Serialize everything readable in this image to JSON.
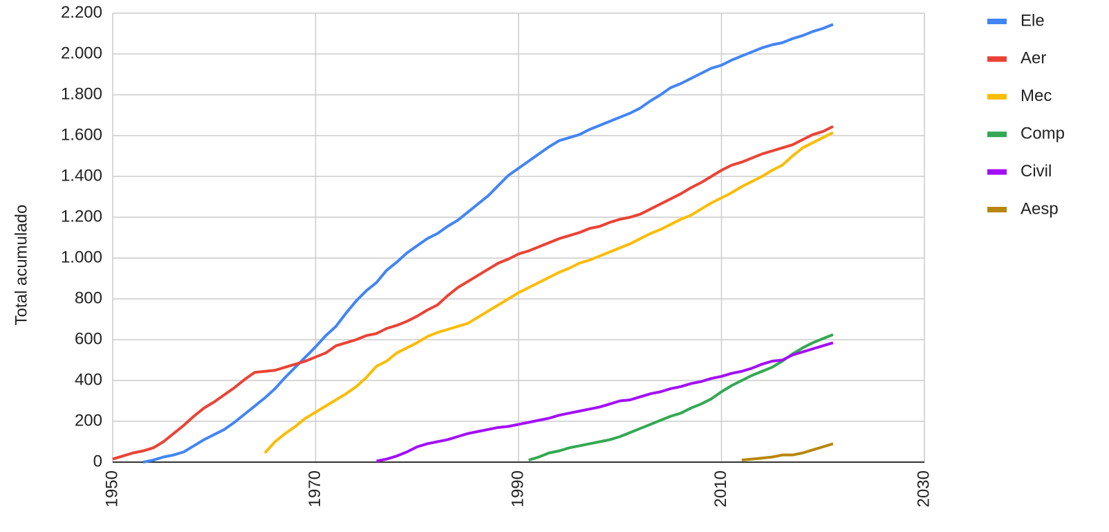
{
  "chart_data": {
    "type": "line",
    "y_label": "Total acumulado",
    "x": [
      1950,
      1951,
      1952,
      1953,
      1954,
      1955,
      1956,
      1957,
      1958,
      1959,
      1960,
      1961,
      1962,
      1963,
      1964,
      1965,
      1966,
      1967,
      1968,
      1969,
      1970,
      1971,
      1972,
      1973,
      1974,
      1975,
      1976,
      1977,
      1978,
      1979,
      1980,
      1981,
      1982,
      1983,
      1984,
      1985,
      1986,
      1987,
      1988,
      1989,
      1990,
      1991,
      1992,
      1993,
      1994,
      1995,
      1996,
      1997,
      1998,
      1999,
      2000,
      2001,
      2002,
      2003,
      2004,
      2005,
      2006,
      2007,
      2008,
      2009,
      2010,
      2011,
      2012,
      2013,
      2014,
      2015,
      2016,
      2017,
      2018,
      2019,
      2020,
      2021
    ],
    "series": [
      {
        "name": "Ele",
        "color": "#4285f4",
        "values": [
          null,
          null,
          null,
          0,
          10,
          25,
          35,
          50,
          80,
          110,
          135,
          160,
          195,
          235,
          275,
          315,
          360,
          415,
          465,
          515,
          565,
          620,
          665,
          730,
          790,
          840,
          880,
          940,
          980,
          1025,
          1060,
          1095,
          1120,
          1155,
          1185,
          1225,
          1265,
          1305,
          1355,
          1405,
          1440,
          1475,
          1510,
          1545,
          1575,
          1590,
          1605,
          1630,
          1650,
          1670,
          1690,
          1710,
          1735,
          1770,
          1800,
          1835,
          1855,
          1880,
          1905,
          1930,
          1945,
          1970,
          1990,
          2010,
          2030,
          2045,
          2055,
          2075,
          2090,
          2110,
          2125,
          2145
        ]
      },
      {
        "name": "Aer",
        "color": "#ea4335",
        "values": [
          15,
          30,
          45,
          55,
          70,
          100,
          140,
          180,
          225,
          265,
          295,
          330,
          365,
          405,
          440,
          445,
          450,
          465,
          480,
          495,
          515,
          535,
          570,
          585,
          600,
          620,
          630,
          655,
          670,
          690,
          715,
          745,
          770,
          815,
          855,
          885,
          915,
          945,
          975,
          995,
          1020,
          1035,
          1055,
          1075,
          1095,
          1110,
          1125,
          1145,
          1155,
          1175,
          1190,
          1200,
          1215,
          1240,
          1265,
          1290,
          1315,
          1345,
          1370,
          1400,
          1430,
          1455,
          1470,
          1490,
          1510,
          1525,
          1540,
          1555,
          1580,
          1605,
          1620,
          1645
        ]
      },
      {
        "name": "Mec",
        "color": "#fbbc04",
        "values": [
          null,
          null,
          null,
          null,
          null,
          null,
          null,
          null,
          null,
          null,
          null,
          null,
          null,
          null,
          null,
          45,
          100,
          140,
          175,
          215,
          245,
          275,
          305,
          335,
          370,
          415,
          470,
          495,
          535,
          560,
          585,
          615,
          635,
          650,
          665,
          680,
          710,
          740,
          770,
          800,
          830,
          855,
          880,
          905,
          930,
          950,
          975,
          990,
          1010,
          1030,
          1050,
          1070,
          1095,
          1120,
          1140,
          1165,
          1190,
          1210,
          1240,
          1270,
          1295,
          1320,
          1350,
          1375,
          1400,
          1430,
          1455,
          1500,
          1540,
          1565,
          1590,
          1615
        ]
      },
      {
        "name": "Comp",
        "color": "#34a853",
        "values": [
          null,
          null,
          null,
          null,
          null,
          null,
          null,
          null,
          null,
          null,
          null,
          null,
          null,
          null,
          null,
          null,
          null,
          null,
          null,
          null,
          null,
          null,
          null,
          null,
          null,
          null,
          null,
          null,
          null,
          null,
          null,
          null,
          null,
          null,
          null,
          null,
          null,
          null,
          null,
          null,
          null,
          10,
          25,
          45,
          55,
          70,
          80,
          90,
          100,
          110,
          125,
          145,
          165,
          185,
          205,
          225,
          240,
          265,
          285,
          310,
          345,
          375,
          400,
          425,
          445,
          465,
          495,
          530,
          560,
          585,
          605,
          625
        ]
      },
      {
        "name": "Civil",
        "color": "#a30ff5",
        "values": [
          null,
          null,
          null,
          null,
          null,
          null,
          null,
          null,
          null,
          null,
          null,
          null,
          null,
          null,
          null,
          null,
          null,
          null,
          null,
          null,
          null,
          null,
          null,
          null,
          null,
          null,
          5,
          15,
          30,
          50,
          75,
          90,
          100,
          110,
          125,
          140,
          150,
          160,
          170,
          175,
          185,
          195,
          205,
          215,
          230,
          240,
          250,
          260,
          270,
          285,
          300,
          305,
          320,
          335,
          345,
          360,
          370,
          385,
          395,
          410,
          420,
          435,
          445,
          460,
          480,
          495,
          500,
          525,
          540,
          555,
          570,
          585
        ]
      },
      {
        "name": "Aesp",
        "color": "#b8860b",
        "values": [
          null,
          null,
          null,
          null,
          null,
          null,
          null,
          null,
          null,
          null,
          null,
          null,
          null,
          null,
          null,
          null,
          null,
          null,
          null,
          null,
          null,
          null,
          null,
          null,
          null,
          null,
          null,
          null,
          null,
          null,
          null,
          null,
          null,
          null,
          null,
          null,
          null,
          null,
          null,
          null,
          null,
          null,
          null,
          null,
          null,
          null,
          null,
          null,
          null,
          null,
          null,
          null,
          null,
          null,
          null,
          null,
          null,
          null,
          null,
          null,
          null,
          null,
          10,
          15,
          20,
          25,
          35,
          35,
          45,
          60,
          75,
          90
        ]
      }
    ],
    "xlim": [
      1950,
      2030
    ],
    "xticks": [
      1950,
      1970,
      1990,
      2010,
      2030
    ],
    "ylim": [
      0,
      2200
    ],
    "yticks": [
      0,
      200,
      400,
      600,
      800,
      {
        "value": 1000,
        "label": "1.000"
      },
      {
        "value": 1200,
        "label": "1.200"
      },
      {
        "value": 1400,
        "label": "1.400"
      },
      {
        "value": 1600,
        "label": "1.600"
      },
      {
        "value": 1800,
        "label": "1.800"
      },
      {
        "value": 2000,
        "label": "2.000"
      },
      {
        "value": 2200,
        "label": "2.200"
      }
    ],
    "grid": true,
    "legend": "right"
  }
}
